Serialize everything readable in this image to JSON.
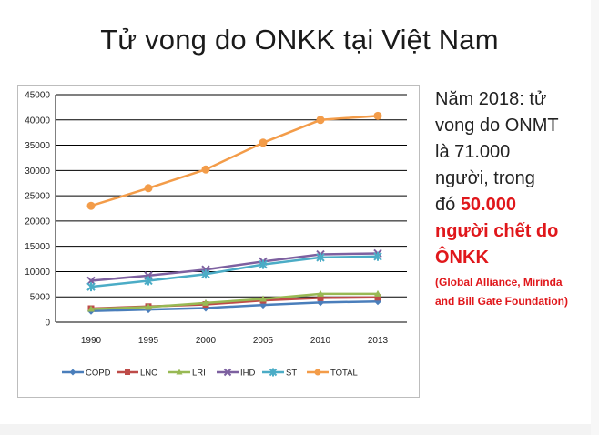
{
  "slide": {
    "title": "Tử vong do ONKK tại Việt Nam"
  },
  "side_text": {
    "line1": "Năm 2018: tử",
    "line2": "vong do ONMT",
    "line3": "là 71.000",
    "line4": "người, trong",
    "line5_prefix": "đó ",
    "line5_highlight": "50.000",
    "line6": "người chết do",
    "line7": "ÔNKK",
    "cite1": "(Global Alliance, Mirinda",
    "cite2": "and Bill Gate Foundation)"
  },
  "chart_data": {
    "type": "line",
    "title": "",
    "xlabel": "",
    "ylabel": "",
    "categories": [
      "1990",
      "1995",
      "2000",
      "2005",
      "2010",
      "2013"
    ],
    "ylim": [
      0,
      45000
    ],
    "yticks": [
      0,
      5000,
      10000,
      15000,
      20000,
      25000,
      30000,
      35000,
      40000,
      45000
    ],
    "grid": true,
    "legend_position": "bottom",
    "series": [
      {
        "name": "COPD",
        "color": "#4a7ebb",
        "marker": "diamond",
        "values": [
          2200,
          2500,
          2800,
          3400,
          3900,
          4100
        ]
      },
      {
        "name": "LNC",
        "color": "#be4b48",
        "marker": "square",
        "values": [
          2700,
          3100,
          3500,
          4300,
          4800,
          4900
        ]
      },
      {
        "name": "LRI",
        "color": "#98b954",
        "marker": "triangle",
        "values": [
          2600,
          3000,
          3800,
          4600,
          5600,
          5600
        ]
      },
      {
        "name": "IHD",
        "color": "#7d60a0",
        "marker": "x",
        "values": [
          8200,
          9200,
          10400,
          12000,
          13400,
          13600
        ]
      },
      {
        "name": "ST",
        "color": "#4bacc6",
        "marker": "star",
        "values": [
          7000,
          8200,
          9500,
          11400,
          12800,
          13000
        ]
      },
      {
        "name": "TOTAL",
        "color": "#f39c49",
        "marker": "circle",
        "values": [
          23000,
          26500,
          30200,
          35500,
          40000,
          40800
        ]
      }
    ]
  }
}
